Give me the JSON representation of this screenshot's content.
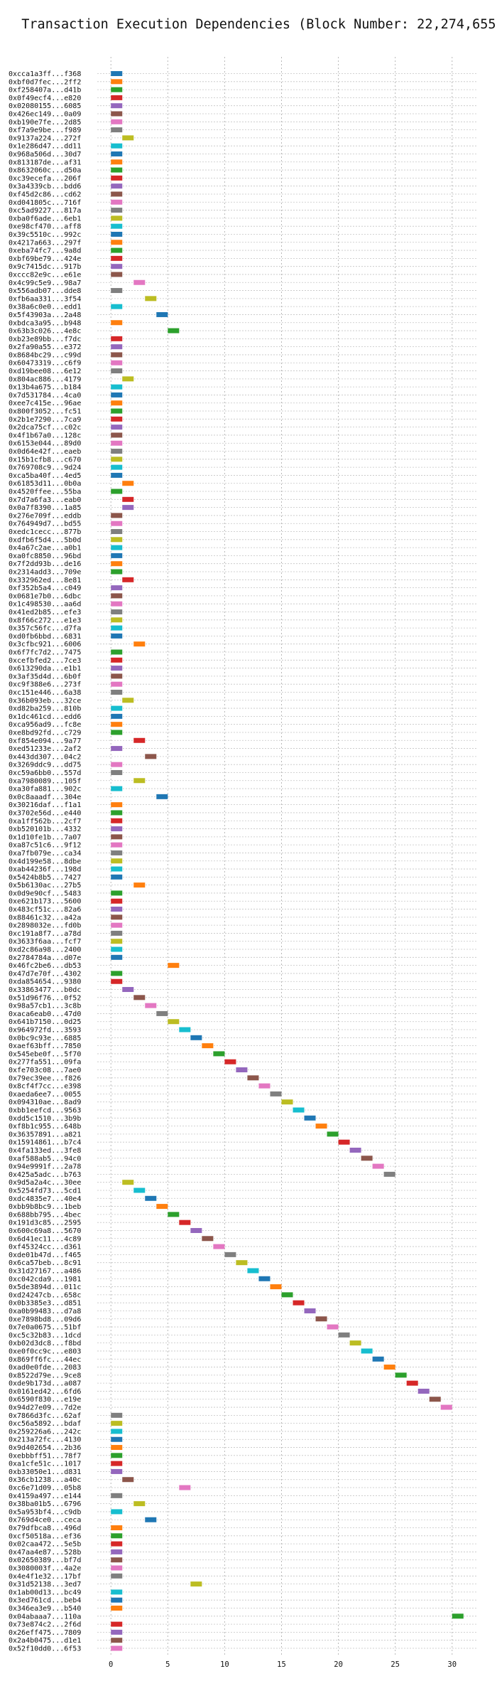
{
  "chart_data": {
    "type": "bar",
    "title": "Transaction Execution Dependencies (Block Number: 22,274,655)",
    "xlabel": "",
    "ylabel": "",
    "xlim": [
      -1.2,
      32.2
    ],
    "xticks": [
      0,
      5,
      10,
      15,
      20,
      25,
      30
    ],
    "grid": true,
    "palette": [
      "#1f77b4",
      "#ff7f0e",
      "#2ca02c",
      "#d62728",
      "#9467bd",
      "#8c564b",
      "#e377c2",
      "#7f7f7f",
      "#bcbd22",
      "#17becf"
    ],
    "transactions": [
      {
        "label": "0xcca1a3ff...f368",
        "start": 0,
        "end": 1
      },
      {
        "label": "0xbf0d7fec...2ff2",
        "start": 0,
        "end": 1
      },
      {
        "label": "0xf258407a...d41b",
        "start": 0,
        "end": 1
      },
      {
        "label": "0x0f49ecf4...e820",
        "start": 0,
        "end": 1
      },
      {
        "label": "0x02080155...6085",
        "start": 0,
        "end": 1
      },
      {
        "label": "0x426ec149...0a09",
        "start": 0,
        "end": 1
      },
      {
        "label": "0xb190e7fe...2d85",
        "start": 0,
        "end": 1
      },
      {
        "label": "0xf7a9e9be...f989",
        "start": 0,
        "end": 1
      },
      {
        "label": "0x9137a224...272f",
        "start": 1,
        "end": 2
      },
      {
        "label": "0x1e286d47...dd11",
        "start": 0,
        "end": 1
      },
      {
        "label": "0x968a506d...30d7",
        "start": 0,
        "end": 1
      },
      {
        "label": "0x813187de...af31",
        "start": 0,
        "end": 1
      },
      {
        "label": "0x8632060c...d50a",
        "start": 0,
        "end": 1
      },
      {
        "label": "0xc39ecefa...206f",
        "start": 0,
        "end": 1
      },
      {
        "label": "0x3a4339cb...bdd6",
        "start": 0,
        "end": 1
      },
      {
        "label": "0xf45d2c86...cd62",
        "start": 0,
        "end": 1
      },
      {
        "label": "0xd041805c...716f",
        "start": 0,
        "end": 1
      },
      {
        "label": "0xc5ad9227...817a",
        "start": 0,
        "end": 1
      },
      {
        "label": "0xba0f6ade...6eb1",
        "start": 0,
        "end": 1
      },
      {
        "label": "0xe98cf470...aff8",
        "start": 0,
        "end": 1
      },
      {
        "label": "0x39c5510c...992c",
        "start": 0,
        "end": 1
      },
      {
        "label": "0x4217a663...297f",
        "start": 0,
        "end": 1
      },
      {
        "label": "0xeba74fc7...9a8d",
        "start": 0,
        "end": 1
      },
      {
        "label": "0xbf69be79...424e",
        "start": 0,
        "end": 1
      },
      {
        "label": "0x9c7415dc...917b",
        "start": 0,
        "end": 1
      },
      {
        "label": "0xccc82e9c...e61e",
        "start": 0,
        "end": 1
      },
      {
        "label": "0x4c99c5e9...98a7",
        "start": 2,
        "end": 3
      },
      {
        "label": "0x556adb07...dde8",
        "start": 0,
        "end": 1
      },
      {
        "label": "0xfb6aa331...3f54",
        "start": 3,
        "end": 4
      },
      {
        "label": "0x38a6c0e0...edd1",
        "start": 0,
        "end": 1
      },
      {
        "label": "0x5f43903a...2a48",
        "start": 4,
        "end": 5
      },
      {
        "label": "0xbdca3a95...b948",
        "start": 0,
        "end": 1
      },
      {
        "label": "0x63b3c026...4e8c",
        "start": 5,
        "end": 6
      },
      {
        "label": "0xb23e89bb...f7dc",
        "start": 0,
        "end": 1
      },
      {
        "label": "0x2fa90a55...e372",
        "start": 0,
        "end": 1
      },
      {
        "label": "0x8684bc29...c99d",
        "start": 0,
        "end": 1
      },
      {
        "label": "0x60473319...c6f9",
        "start": 0,
        "end": 1
      },
      {
        "label": "0xd19bee08...6e12",
        "start": 0,
        "end": 1
      },
      {
        "label": "0x804ac886...4179",
        "start": 1,
        "end": 2
      },
      {
        "label": "0x13b4a675...b184",
        "start": 0,
        "end": 1
      },
      {
        "label": "0x7d531784...4ca0",
        "start": 0,
        "end": 1
      },
      {
        "label": "0xee7c415e...96ae",
        "start": 0,
        "end": 1
      },
      {
        "label": "0x800f3052...fc51",
        "start": 0,
        "end": 1
      },
      {
        "label": "0x2b1e7290...7ca9",
        "start": 0,
        "end": 1
      },
      {
        "label": "0x2dca75cf...c02c",
        "start": 0,
        "end": 1
      },
      {
        "label": "0x4f1b67a0...128c",
        "start": 0,
        "end": 1
      },
      {
        "label": "0x6153e044...89d0",
        "start": 0,
        "end": 1
      },
      {
        "label": "0x0d64e42f...eaeb",
        "start": 0,
        "end": 1
      },
      {
        "label": "0x15b1cfb8...c670",
        "start": 0,
        "end": 1
      },
      {
        "label": "0x769708c9...9d24",
        "start": 0,
        "end": 1
      },
      {
        "label": "0xca5ba40f...4ed5",
        "start": 0,
        "end": 1
      },
      {
        "label": "0x61853d11...0b0a",
        "start": 1,
        "end": 2
      },
      {
        "label": "0x4520ffee...55ba",
        "start": 0,
        "end": 1
      },
      {
        "label": "0x7d7a6fa3...eab0",
        "start": 1,
        "end": 2
      },
      {
        "label": "0x0a7f8390...1a85",
        "start": 1,
        "end": 2
      },
      {
        "label": "0x276e709f...eddb",
        "start": 0,
        "end": 1
      },
      {
        "label": "0x764949d7...bd55",
        "start": 0,
        "end": 1
      },
      {
        "label": "0xedc1cecc...877b",
        "start": 0,
        "end": 1
      },
      {
        "label": "0xdfb6f5d4...5b0d",
        "start": 0,
        "end": 1
      },
      {
        "label": "0x4a67c2ae...a0b1",
        "start": 0,
        "end": 1
      },
      {
        "label": "0xa0fc8850...96bd",
        "start": 0,
        "end": 1
      },
      {
        "label": "0x7f2dd93b...de16",
        "start": 0,
        "end": 1
      },
      {
        "label": "0x2314add3...709e",
        "start": 0,
        "end": 1
      },
      {
        "label": "0x332962ed...8e81",
        "start": 1,
        "end": 2
      },
      {
        "label": "0xf352b5a4...c049",
        "start": 0,
        "end": 1
      },
      {
        "label": "0x0681e7b0...6dbc",
        "start": 0,
        "end": 1
      },
      {
        "label": "0x1c498530...aa6d",
        "start": 0,
        "end": 1
      },
      {
        "label": "0x41ed2b85...efe3",
        "start": 0,
        "end": 1
      },
      {
        "label": "0x8f66c272...e1e3",
        "start": 0,
        "end": 1
      },
      {
        "label": "0x357c56fc...d7fa",
        "start": 0,
        "end": 1
      },
      {
        "label": "0xd0fb6bbd...6831",
        "start": 0,
        "end": 1
      },
      {
        "label": "0x3cfbc921...6006",
        "start": 2,
        "end": 3
      },
      {
        "label": "0x6f7fc7d2...7475",
        "start": 0,
        "end": 1
      },
      {
        "label": "0xcefbfed2...7ce3",
        "start": 0,
        "end": 1
      },
      {
        "label": "0x613290da...e1b1",
        "start": 0,
        "end": 1
      },
      {
        "label": "0x3af35d4d...6b0f",
        "start": 0,
        "end": 1
      },
      {
        "label": "0xc9f388e6...273f",
        "start": 0,
        "end": 1
      },
      {
        "label": "0xc151e446...6a38",
        "start": 0,
        "end": 1
      },
      {
        "label": "0x36b093eb...32ce",
        "start": 1,
        "end": 2
      },
      {
        "label": "0xd82ba259...810b",
        "start": 0,
        "end": 1
      },
      {
        "label": "0x1dc461cd...edd6",
        "start": 0,
        "end": 1
      },
      {
        "label": "0xca956ad9...fc8e",
        "start": 0,
        "end": 1
      },
      {
        "label": "0xe8bd92fd...c729",
        "start": 0,
        "end": 1
      },
      {
        "label": "0xf854e094...9a77",
        "start": 2,
        "end": 3
      },
      {
        "label": "0xed51233e...2af2",
        "start": 0,
        "end": 1
      },
      {
        "label": "0x443dd307...04c2",
        "start": 3,
        "end": 4
      },
      {
        "label": "0x3269ddc9...dd75",
        "start": 0,
        "end": 1
      },
      {
        "label": "0xc59a6bb0...557d",
        "start": 0,
        "end": 1
      },
      {
        "label": "0xa7980089...105f",
        "start": 2,
        "end": 3
      },
      {
        "label": "0xa30fa881...902c",
        "start": 0,
        "end": 1
      },
      {
        "label": "0x0c8aaadf...304e",
        "start": 4,
        "end": 5
      },
      {
        "label": "0x30216daf...f1a1",
        "start": 0,
        "end": 1
      },
      {
        "label": "0x3702e56d...e440",
        "start": 0,
        "end": 1
      },
      {
        "label": "0xa1ff562b...2cf7",
        "start": 0,
        "end": 1
      },
      {
        "label": "0xb520101b...4332",
        "start": 0,
        "end": 1
      },
      {
        "label": "0x1d10fe1b...7a07",
        "start": 0,
        "end": 1
      },
      {
        "label": "0xa87c51c6...9f12",
        "start": 0,
        "end": 1
      },
      {
        "label": "0xa7fb079e...ca34",
        "start": 0,
        "end": 1
      },
      {
        "label": "0x4d199e58...8dbe",
        "start": 0,
        "end": 1
      },
      {
        "label": "0xab44236f...198d",
        "start": 0,
        "end": 1
      },
      {
        "label": "0x5424b8b5...7427",
        "start": 0,
        "end": 1
      },
      {
        "label": "0x5b6130ac...27b5",
        "start": 2,
        "end": 3
      },
      {
        "label": "0x0d9e90cf...5483",
        "start": 0,
        "end": 1
      },
      {
        "label": "0xe621b173...5600",
        "start": 0,
        "end": 1
      },
      {
        "label": "0x483cf51c...82a6",
        "start": 0,
        "end": 1
      },
      {
        "label": "0x88461c32...a42a",
        "start": 0,
        "end": 1
      },
      {
        "label": "0x2898032e...fd0b",
        "start": 0,
        "end": 1
      },
      {
        "label": "0xc191a8f7...a78d",
        "start": 0,
        "end": 1
      },
      {
        "label": "0x3633f6aa...fcf7",
        "start": 0,
        "end": 1
      },
      {
        "label": "0xd2c86a98...2400",
        "start": 0,
        "end": 1
      },
      {
        "label": "0x2784784a...d07e",
        "start": 0,
        "end": 1
      },
      {
        "label": "0x46fc2be6...db53",
        "start": 5,
        "end": 6
      },
      {
        "label": "0x47d7e70f...4302",
        "start": 0,
        "end": 1
      },
      {
        "label": "0xda854654...9380",
        "start": 0,
        "end": 1
      },
      {
        "label": "0x33863477...b0dc",
        "start": 1,
        "end": 2
      },
      {
        "label": "0x51d96f76...0f52",
        "start": 2,
        "end": 3
      },
      {
        "label": "0x98a57cb1...3c8b",
        "start": 3,
        "end": 4
      },
      {
        "label": "0xaca6eab0...47d0",
        "start": 4,
        "end": 5
      },
      {
        "label": "0x641b7150...0d25",
        "start": 5,
        "end": 6
      },
      {
        "label": "0x964972fd...3593",
        "start": 6,
        "end": 7
      },
      {
        "label": "0x0bc9c93e...6885",
        "start": 7,
        "end": 8
      },
      {
        "label": "0xaef63bff...7850",
        "start": 8,
        "end": 9
      },
      {
        "label": "0x545ebe0f...5f70",
        "start": 9,
        "end": 10
      },
      {
        "label": "0x277fa551...09fa",
        "start": 10,
        "end": 11
      },
      {
        "label": "0xfe703c08...7ae0",
        "start": 11,
        "end": 12
      },
      {
        "label": "0x79ec39ee...f826",
        "start": 12,
        "end": 13
      },
      {
        "label": "0x8cf4f7cc...e398",
        "start": 13,
        "end": 14
      },
      {
        "label": "0xaeda6ee7...0055",
        "start": 14,
        "end": 15
      },
      {
        "label": "0x094310ae...8ad9",
        "start": 15,
        "end": 16
      },
      {
        "label": "0xbb1eefcd...9563",
        "start": 16,
        "end": 17
      },
      {
        "label": "0xdd5c1510...3b9b",
        "start": 17,
        "end": 18
      },
      {
        "label": "0xf8b1c955...648b",
        "start": 18,
        "end": 19
      },
      {
        "label": "0x36357891...a821",
        "start": 19,
        "end": 20
      },
      {
        "label": "0x15914861...b7c4",
        "start": 20,
        "end": 21
      },
      {
        "label": "0x4fa133ed...3fe8",
        "start": 21,
        "end": 22
      },
      {
        "label": "0xaf588ab5...94c0",
        "start": 22,
        "end": 23
      },
      {
        "label": "0x94e9991f...2a78",
        "start": 23,
        "end": 24
      },
      {
        "label": "0x425a5adc...b763",
        "start": 24,
        "end": 25
      },
      {
        "label": "0x9d5a2a4c...30ee",
        "start": 1,
        "end": 2
      },
      {
        "label": "0x5254fd73...5cd1",
        "start": 2,
        "end": 3
      },
      {
        "label": "0xdc4835e7...40e4",
        "start": 3,
        "end": 4
      },
      {
        "label": "0xbb9b8bc9...1beb",
        "start": 4,
        "end": 5
      },
      {
        "label": "0x688bb795...4bec",
        "start": 5,
        "end": 6
      },
      {
        "label": "0x191d3c85...2595",
        "start": 6,
        "end": 7
      },
      {
        "label": "0x600c69a8...5670",
        "start": 7,
        "end": 8
      },
      {
        "label": "0x6d41ec11...4c89",
        "start": 8,
        "end": 9
      },
      {
        "label": "0xf45324cc...d361",
        "start": 9,
        "end": 10
      },
      {
        "label": "0xde01b47d...f465",
        "start": 10,
        "end": 11
      },
      {
        "label": "0x6ca57beb...8c91",
        "start": 11,
        "end": 12
      },
      {
        "label": "0x31d27167...a486",
        "start": 12,
        "end": 13
      },
      {
        "label": "0xc042cda9...1981",
        "start": 13,
        "end": 14
      },
      {
        "label": "0x5de3894d...011c",
        "start": 14,
        "end": 15
      },
      {
        "label": "0xd24247cb...658c",
        "start": 15,
        "end": 16
      },
      {
        "label": "0x0b3385e3...d851",
        "start": 16,
        "end": 17
      },
      {
        "label": "0xa0b99483...d7a8",
        "start": 17,
        "end": 18
      },
      {
        "label": "0xe7898bd8...09d6",
        "start": 18,
        "end": 19
      },
      {
        "label": "0x7e0a0675...51bf",
        "start": 19,
        "end": 20
      },
      {
        "label": "0xc5c32b83...1dcd",
        "start": 20,
        "end": 21
      },
      {
        "label": "0xb02d3dc8...f8bd",
        "start": 21,
        "end": 22
      },
      {
        "label": "0xe0f0cc9c...e803",
        "start": 22,
        "end": 23
      },
      {
        "label": "0x869ff6fc...44ec",
        "start": 23,
        "end": 24
      },
      {
        "label": "0xad0e0fde...2083",
        "start": 24,
        "end": 25
      },
      {
        "label": "0x8522d79e...9ce8",
        "start": 25,
        "end": 26
      },
      {
        "label": "0xde9b173d...a087",
        "start": 26,
        "end": 27
      },
      {
        "label": "0x0161ed42...6fd6",
        "start": 27,
        "end": 28
      },
      {
        "label": "0x6590f830...e19e",
        "start": 28,
        "end": 29
      },
      {
        "label": "0x94d27e09...7d2e",
        "start": 29,
        "end": 30
      },
      {
        "label": "0x7866d3fc...62af",
        "start": 0,
        "end": 1
      },
      {
        "label": "0xc56a5892...bdaf",
        "start": 0,
        "end": 1
      },
      {
        "label": "0x259226a6...242c",
        "start": 0,
        "end": 1
      },
      {
        "label": "0x213a72fc...4130",
        "start": 0,
        "end": 1
      },
      {
        "label": "0x9d402654...2b36",
        "start": 0,
        "end": 1
      },
      {
        "label": "0xebbbff51...78f7",
        "start": 0,
        "end": 1
      },
      {
        "label": "0xa1cfe51c...1017",
        "start": 0,
        "end": 1
      },
      {
        "label": "0xb33050e1...d831",
        "start": 0,
        "end": 1
      },
      {
        "label": "0x36cb1238...a40c",
        "start": 1,
        "end": 2
      },
      {
        "label": "0xc6e71d09...05b8",
        "start": 6,
        "end": 7
      },
      {
        "label": "0x4159a497...e144",
        "start": 0,
        "end": 1
      },
      {
        "label": "0x38ba01b5...6796",
        "start": 2,
        "end": 3
      },
      {
        "label": "0x5a953bf4...c9db",
        "start": 0,
        "end": 1
      },
      {
        "label": "0x769d4ce0...ceca",
        "start": 3,
        "end": 4
      },
      {
        "label": "0x79dfbca8...496d",
        "start": 0,
        "end": 1
      },
      {
        "label": "0xcf50518a...ef36",
        "start": 0,
        "end": 1
      },
      {
        "label": "0x02caa472...5e5b",
        "start": 0,
        "end": 1
      },
      {
        "label": "0x47aa4e87...528b",
        "start": 0,
        "end": 1
      },
      {
        "label": "0x02650389...bf7d",
        "start": 0,
        "end": 1
      },
      {
        "label": "0x3080003f...4a2e",
        "start": 0,
        "end": 1
      },
      {
        "label": "0x4e4f1e32...17bf",
        "start": 0,
        "end": 1
      },
      {
        "label": "0x31d52138...3ed7",
        "start": 7,
        "end": 8
      },
      {
        "label": "0x1ab00d13...bc49",
        "start": 0,
        "end": 1
      },
      {
        "label": "0x3ed761cd...beb4",
        "start": 0,
        "end": 1
      },
      {
        "label": "0x346ea3e9...b540",
        "start": 0,
        "end": 1
      },
      {
        "label": "0x04abaaa7...110a",
        "start": 30,
        "end": 31
      },
      {
        "label": "0x73e874c2...2f6d",
        "start": 0,
        "end": 1
      },
      {
        "label": "0x26eff475...7809",
        "start": 0,
        "end": 1
      },
      {
        "label": "0x2a4b0475...d1e1",
        "start": 0,
        "end": 1
      },
      {
        "label": "0x52f10dd0...6f53",
        "start": 0,
        "end": 1
      }
    ]
  }
}
